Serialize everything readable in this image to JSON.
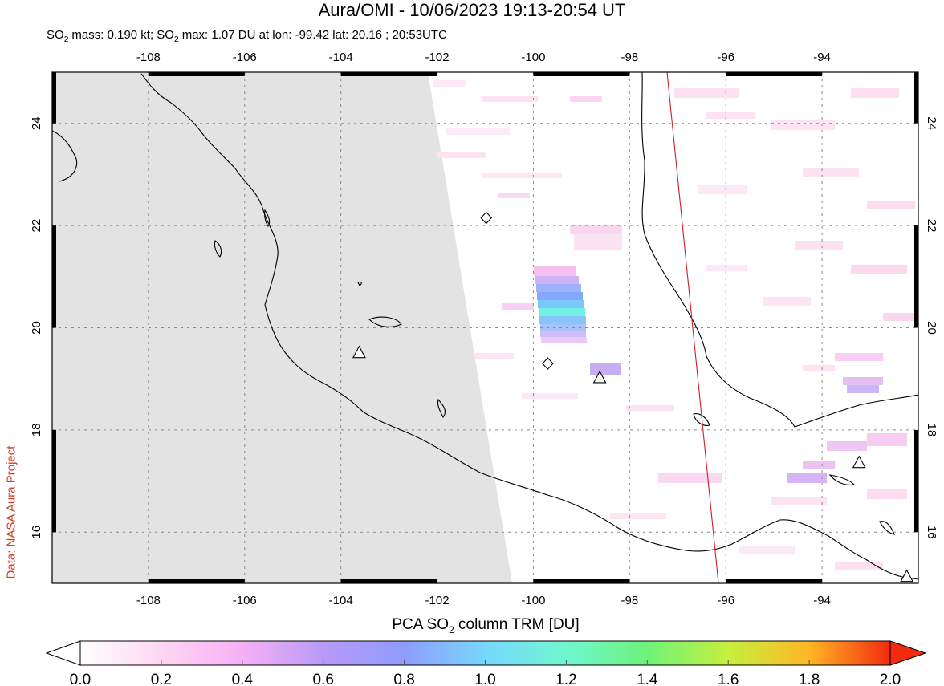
{
  "header": {
    "title": "Aura/OMI - 10/06/2023 19:13-20:54 UT",
    "subtitle_mass_pre": "SO",
    "subtitle_mass_sub": "2",
    "subtitle_mass_text": " mass: 0.190 kt; SO",
    "subtitle_max_sub": "2",
    "subtitle_max_text": " max: 1.07 DU at lon: -99.42 lat: 20.16 ; 20:53UTC"
  },
  "credit": "Data: NASA Aura Project",
  "map": {
    "lon_range": [
      -110,
      -92
    ],
    "lat_range": [
      15,
      25
    ],
    "lon_ticks": [
      -108,
      -106,
      -104,
      -102,
      -100,
      -98,
      -96,
      -94
    ],
    "lat_ticks": [
      16,
      18,
      20,
      22,
      24
    ],
    "lon_tick_labels": [
      "-108",
      "-106",
      "-104",
      "-102",
      "-100",
      "-98",
      "-96",
      "-94"
    ],
    "lat_tick_labels": [
      "16",
      "18",
      "20",
      "22",
      "24"
    ],
    "grid": "dashed",
    "no_data_color": "#e3e3e3",
    "orbit_track_color": "#cc2222",
    "volcanoes": [
      {
        "lon": -103.62,
        "lat": 19.51
      },
      {
        "lon": -98.62,
        "lat": 19.02
      },
      {
        "lon": -93.23,
        "lat": 17.36
      },
      {
        "lon": -92.24,
        "lat": 15.13
      }
    ],
    "diamonds": [
      {
        "lon": -100.98,
        "lat": 22.15
      },
      {
        "lon": -99.7,
        "lat": 19.3
      }
    ]
  },
  "colorbar": {
    "label_pre": "PCA SO",
    "label_sub": "2",
    "label_post": " column TRM [DU]",
    "ticks": [
      "0.0",
      "0.2",
      "0.4",
      "0.6",
      "0.8",
      "1.0",
      "1.2",
      "1.4",
      "1.6",
      "1.8",
      "2.0"
    ],
    "min": 0.0,
    "max": 2.0
  }
}
